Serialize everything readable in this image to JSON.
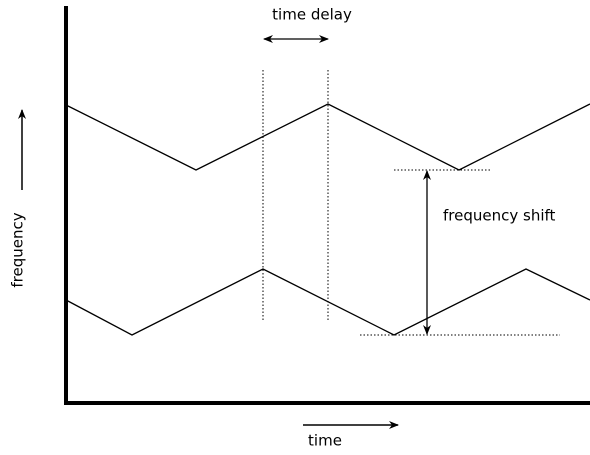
{
  "labels": {
    "time_delay": "time delay",
    "frequency_shift": "frequency shift",
    "y_axis": "frequency",
    "x_axis": "time"
  }
}
